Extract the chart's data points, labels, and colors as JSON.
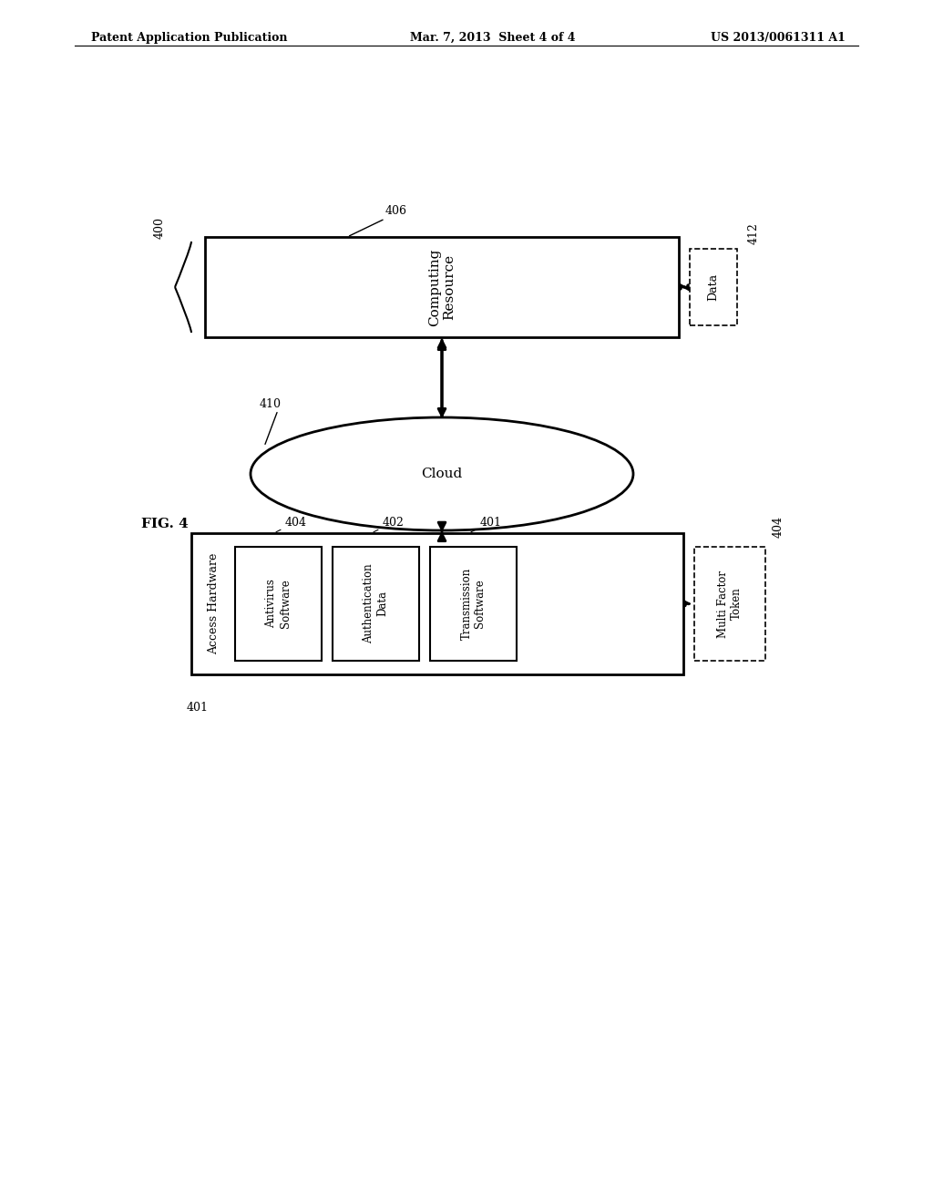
{
  "header_left": "Patent Application Publication",
  "header_mid": "Mar. 7, 2013  Sheet 4 of 4",
  "header_right": "US 2013/0061311 A1",
  "fig_label": "FIG. 4",
  "computing_resource_label": "Computing\nResource",
  "computing_resource_ref": "406",
  "cloud_label": "400",
  "data_box_label": "Data",
  "data_box_ref": "412",
  "cloud_shape_label": "Cloud",
  "cloud_shape_ref": "410",
  "access_hw_label": "Access Hardware",
  "access_hw_ref": "401",
  "antivirus_label": "Antivirus\nSoftware",
  "antivirus_ref": "404",
  "auth_label": "Authentication\nData",
  "auth_ref": "402",
  "trans_label": "Transmission\nSoftware",
  "trans_ref": "401",
  "token_label": "Multi Factor\nToken",
  "token_ref": "404",
  "bg_color": "#ffffff",
  "line_color": "#000000"
}
